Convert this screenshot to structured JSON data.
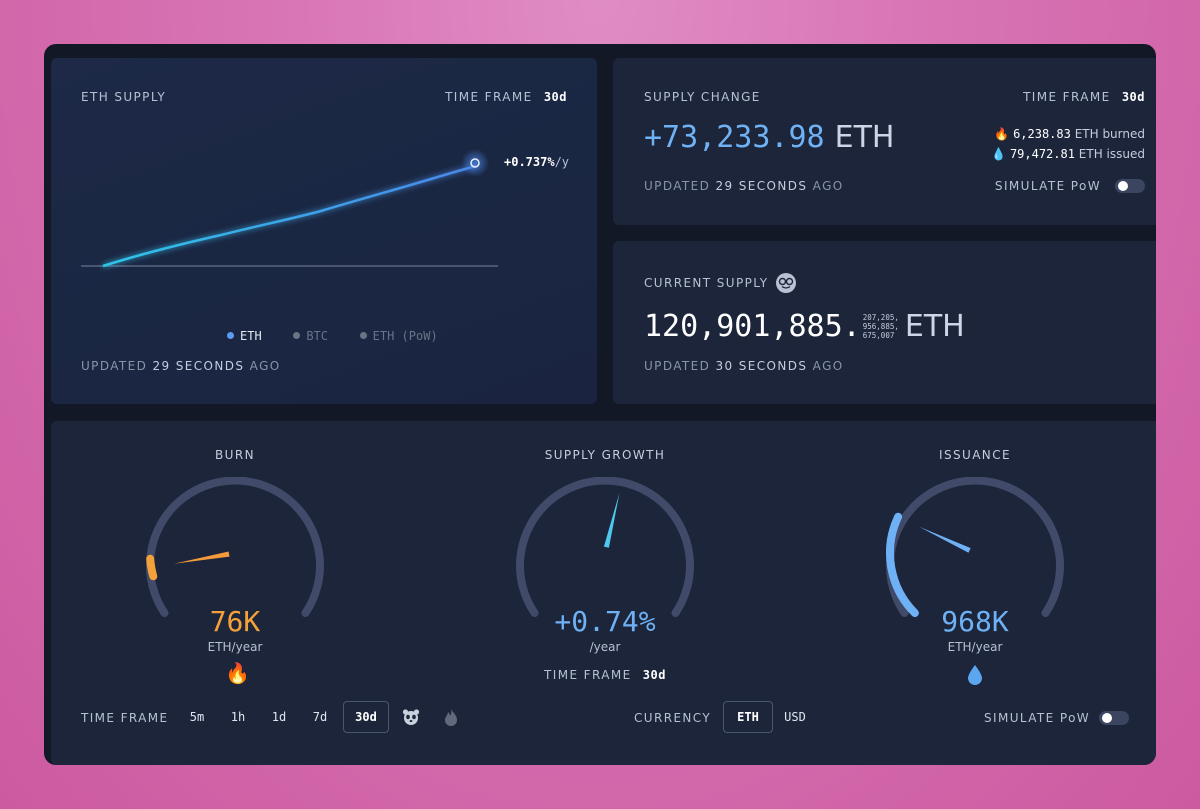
{
  "eth_supply": {
    "title": "ETH SUPPLY",
    "timeframe_label": "TIME FRAME",
    "timeframe_value": "30d",
    "rate": "+0.737%",
    "rate_unit": "/y",
    "legend": [
      "ETH",
      "BTC",
      "ETH (PoW)"
    ],
    "updated_prefix": "UPDATED",
    "updated_value": "29 SECONDS",
    "updated_suffix": "AGO",
    "colors": {
      "eth": "#5b9cf0",
      "btc": "#6b7387",
      "pow": "#6b7387"
    }
  },
  "supply_change": {
    "title": "SUPPLY CHANGE",
    "timeframe_label": "TIME FRAME",
    "timeframe_value": "30d",
    "value": "+73,233.98",
    "unit": "ETH",
    "burned_value": "6,238.83",
    "burned_label": "ETH burned",
    "issued_value": "79,472.81",
    "issued_label": "ETH issued",
    "updated_prefix": "UPDATED",
    "updated_value": "29 SECONDS",
    "updated_suffix": "AGO",
    "simulate_label": "SIMULATE PoW"
  },
  "current_supply": {
    "title": "CURRENT SUPPLY",
    "value": "120,901,885.",
    "decimals": [
      "207,205,",
      "956,885,",
      "675,007"
    ],
    "unit": "ETH",
    "updated_prefix": "UPDATED",
    "updated_value": "30 SECONDS",
    "updated_suffix": "AGO"
  },
  "gauges": {
    "burn": {
      "title": "BURN",
      "value": "76K",
      "unit": "ETH/year",
      "level": 0.13,
      "color": "#f5a13a"
    },
    "growth": {
      "title": "SUPPLY GROWTH",
      "value": "+0.74%",
      "unit": "/year",
      "level": 0.55,
      "color": "#6fb1f5",
      "timeframe_label": "TIME FRAME",
      "timeframe_value": "30d"
    },
    "issuance": {
      "title": "ISSUANCE",
      "value": "968K",
      "unit": "ETH/year",
      "level": 0.26,
      "color": "#6fb1f5"
    }
  },
  "footer": {
    "timeframe_label": "TIME FRAME",
    "timeframes": [
      "5m",
      "1h",
      "1d",
      "7d",
      "30d"
    ],
    "active_timeframe": "30d",
    "currency_label": "CURRENCY",
    "currencies": [
      "ETH",
      "USD"
    ],
    "active_currency": "ETH",
    "simulate_label": "SIMULATE PoW"
  }
}
